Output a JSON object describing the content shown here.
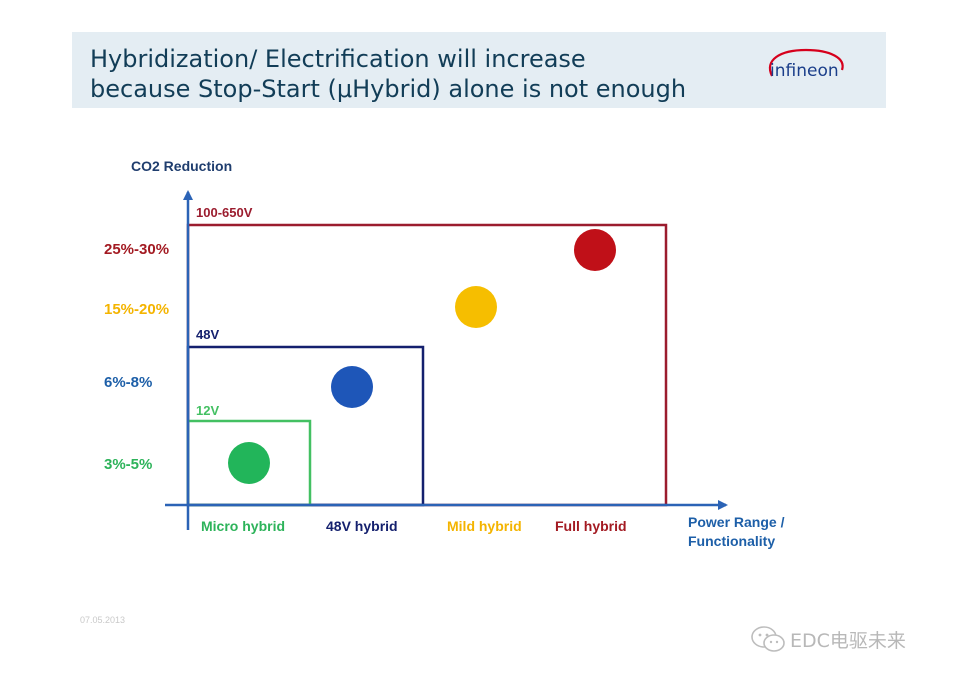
{
  "slide": {
    "title_line1": "Hybridization/ Electrification will increase",
    "title_line2": "because Stop-Start (μHybrid) alone is not enough",
    "logo_text": "infineon",
    "date": "07.05.2013"
  },
  "diagram": {
    "y_axis_label": "CO2 Reduction",
    "x_axis_label_line1": "Power Range /",
    "x_axis_label_line2": "Functionality",
    "voltage_boxes": [
      {
        "label": "100-650V",
        "color": "#9b1c2e"
      },
      {
        "label": "48V",
        "color": "#14206e"
      },
      {
        "label": "12V",
        "color": "#43c062"
      }
    ],
    "reduction_levels": [
      {
        "label": "25%-30%",
        "color": "#a31a22"
      },
      {
        "label": "15%-20%",
        "color": "#f4b400"
      },
      {
        "label": "6%-8%",
        "color": "#1d5fa8"
      },
      {
        "label": "3%-5%",
        "color": "#2db35a"
      }
    ],
    "categories": [
      {
        "label": "Micro hybrid",
        "color": "#2db35a"
      },
      {
        "label": "48V hybrid",
        "color": "#14206e"
      },
      {
        "label": "Mild hybrid",
        "color": "#f4b400"
      },
      {
        "label": "Full hybrid",
        "color": "#a31a22"
      }
    ],
    "dots": [
      {
        "category": "Micro hybrid",
        "color": "#22b55a"
      },
      {
        "category": "48V hybrid",
        "color": "#1e56b8"
      },
      {
        "category": "Mild hybrid",
        "color": "#f6be00"
      },
      {
        "category": "Full hybrid",
        "color": "#c01018"
      }
    ]
  },
  "watermark": {
    "text": "EDC电驱未来"
  },
  "colors": {
    "axis": "#2b63b6",
    "title_band": "#e4edf3",
    "title_text": "#123d57",
    "logo_red": "#d6001c",
    "logo_blue": "#1a3e8a"
  }
}
